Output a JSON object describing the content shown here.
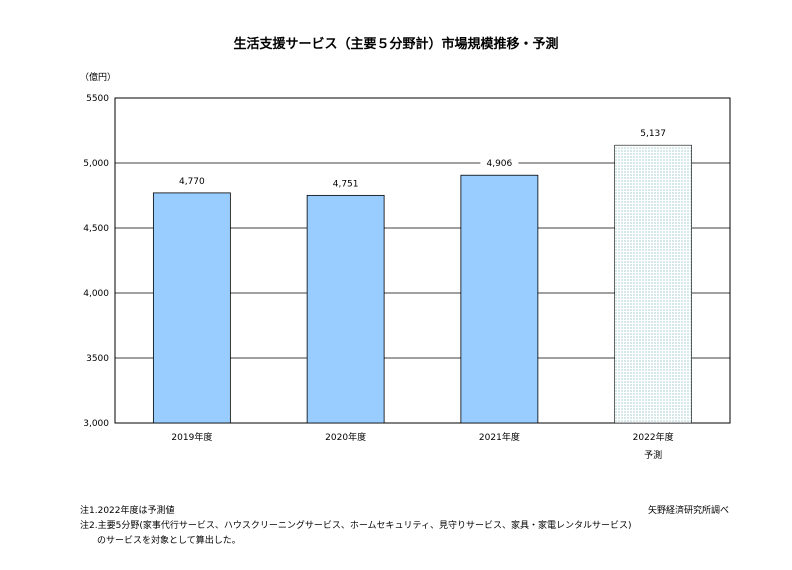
{
  "chart_data": {
    "type": "bar",
    "title": "生活支援サービス（主要５分野計）市場規模推移・予測",
    "unit_label": "（億円）",
    "categories": [
      "2019年度",
      "2020年度",
      "2021年度",
      "2022年度"
    ],
    "category_sublabels": [
      "",
      "",
      "",
      "予測"
    ],
    "values": [
      4770,
      4751,
      4906,
      5137
    ],
    "data_labels": [
      "4,770",
      "4,751",
      "4,906",
      "5,137"
    ],
    "forecast": [
      false,
      false,
      false,
      true
    ],
    "ylim": [
      3000,
      5500
    ],
    "yticks": [
      3000,
      3500,
      4000,
      4500,
      5000,
      5500
    ],
    "ytick_labels": [
      "3,000",
      "3500",
      "4,000",
      "4,500",
      "5,000",
      "5500"
    ],
    "grid": true,
    "colors": {
      "bar": "#99ccff",
      "bar_border": "#000000",
      "forecast_dot": "#5fa3a3",
      "gridline": "#000000"
    }
  },
  "notes": [
    "注1.2022年度は予測値",
    "注2.主要5分野(家事代行サービス、ハウスクリーニングサービス、ホームセキュリティ、見守りサービス、家具・家電レンタルサービス)",
    "のサービスを対象として算出した。"
  ],
  "source": "矢野経済研究所調べ"
}
